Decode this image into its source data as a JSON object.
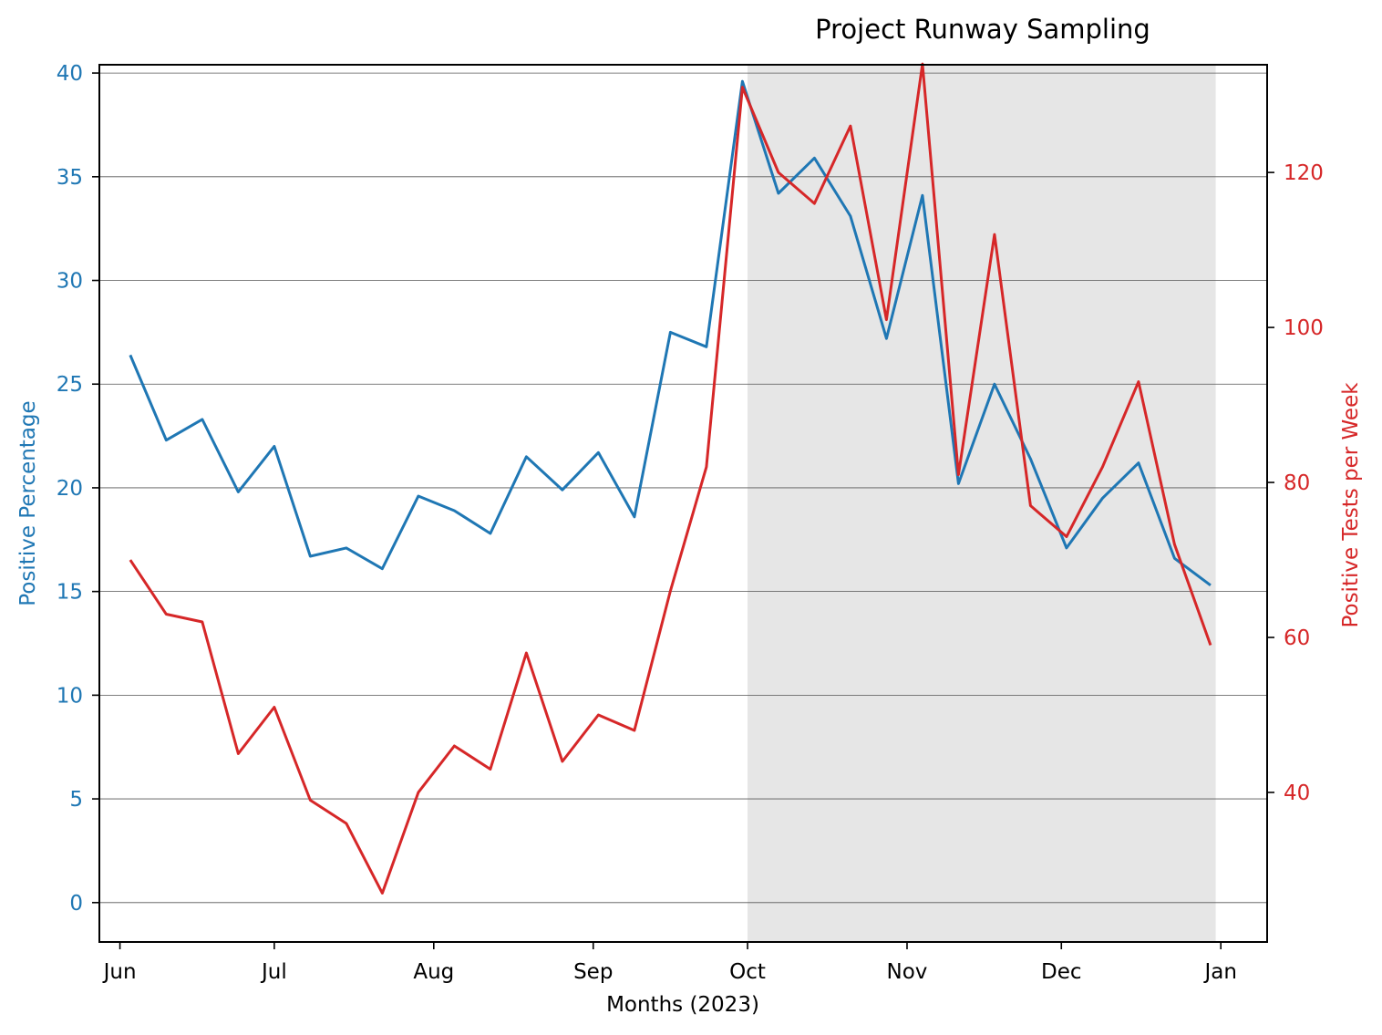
{
  "chart_data": {
    "type": "line",
    "title": "Project Runway Sampling",
    "xlabel": "Months (2023)",
    "ylabel_left": "Positive Percentage",
    "ylabel_right": "Positive Tests per Week",
    "x_tick_labels": [
      {
        "label": "Jun",
        "date": "2023-06-01"
      },
      {
        "label": "Jul",
        "date": "2023-07-01"
      },
      {
        "label": "Aug",
        "date": "2023-08-01"
      },
      {
        "label": "Sep",
        "date": "2023-09-01"
      },
      {
        "label": "Oct",
        "date": "2023-10-01"
      },
      {
        "label": "Nov",
        "date": "2023-11-01"
      },
      {
        "label": "Dec",
        "date": "2023-12-01"
      },
      {
        "label": "Jan",
        "date": "2024-01-01"
      }
    ],
    "xlim": [
      "2023-05-28",
      "2024-01-10"
    ],
    "ylim_left": [
      -1.9,
      40.4
    ],
    "ylim_right": [
      20.7,
      133.9
    ],
    "y_ticks_left": [
      0,
      5,
      10,
      15,
      20,
      25,
      30,
      35,
      40
    ],
    "y_ticks_right": [
      40,
      60,
      80,
      100,
      120
    ],
    "grid": true,
    "shaded_region": {
      "start": "2023-10-01",
      "end": "2023-12-31"
    },
    "colors": {
      "left_series": "#1f77b4",
      "right_series": "#d62728",
      "shade": "#e6e6e6",
      "grid": "#555555"
    },
    "dates": [
      "2023-06-03",
      "2023-06-10",
      "2023-06-17",
      "2023-06-24",
      "2023-07-01",
      "2023-07-08",
      "2023-07-15",
      "2023-07-22",
      "2023-07-29",
      "2023-08-05",
      "2023-08-12",
      "2023-08-19",
      "2023-08-26",
      "2023-09-02",
      "2023-09-09",
      "2023-09-16",
      "2023-09-23",
      "2023-09-30",
      "2023-10-07",
      "2023-10-14",
      "2023-10-21",
      "2023-10-28",
      "2023-11-04",
      "2023-11-11",
      "2023-11-18",
      "2023-11-25",
      "2023-12-02",
      "2023-12-09",
      "2023-12-16",
      "2023-12-23",
      "2023-12-30"
    ],
    "series": [
      {
        "axis": "left",
        "values": [
          26.4,
          22.3,
          23.3,
          19.8,
          22.0,
          16.7,
          17.1,
          16.1,
          19.6,
          18.9,
          17.8,
          21.5,
          19.9,
          21.7,
          18.6,
          27.5,
          26.8,
          39.6,
          34.2,
          35.9,
          33.1,
          27.2,
          34.1,
          20.2,
          25.0,
          21.4,
          17.1,
          19.5,
          21.2,
          16.6,
          15.3
        ]
      },
      {
        "axis": "right",
        "values": [
          70,
          63,
          62,
          45,
          51,
          39,
          36,
          27,
          40,
          46,
          43,
          58,
          44,
          50,
          48,
          66,
          82,
          131,
          120,
          116,
          126,
          101,
          134,
          81,
          112,
          77,
          73,
          82,
          93,
          72,
          59
        ]
      }
    ]
  }
}
